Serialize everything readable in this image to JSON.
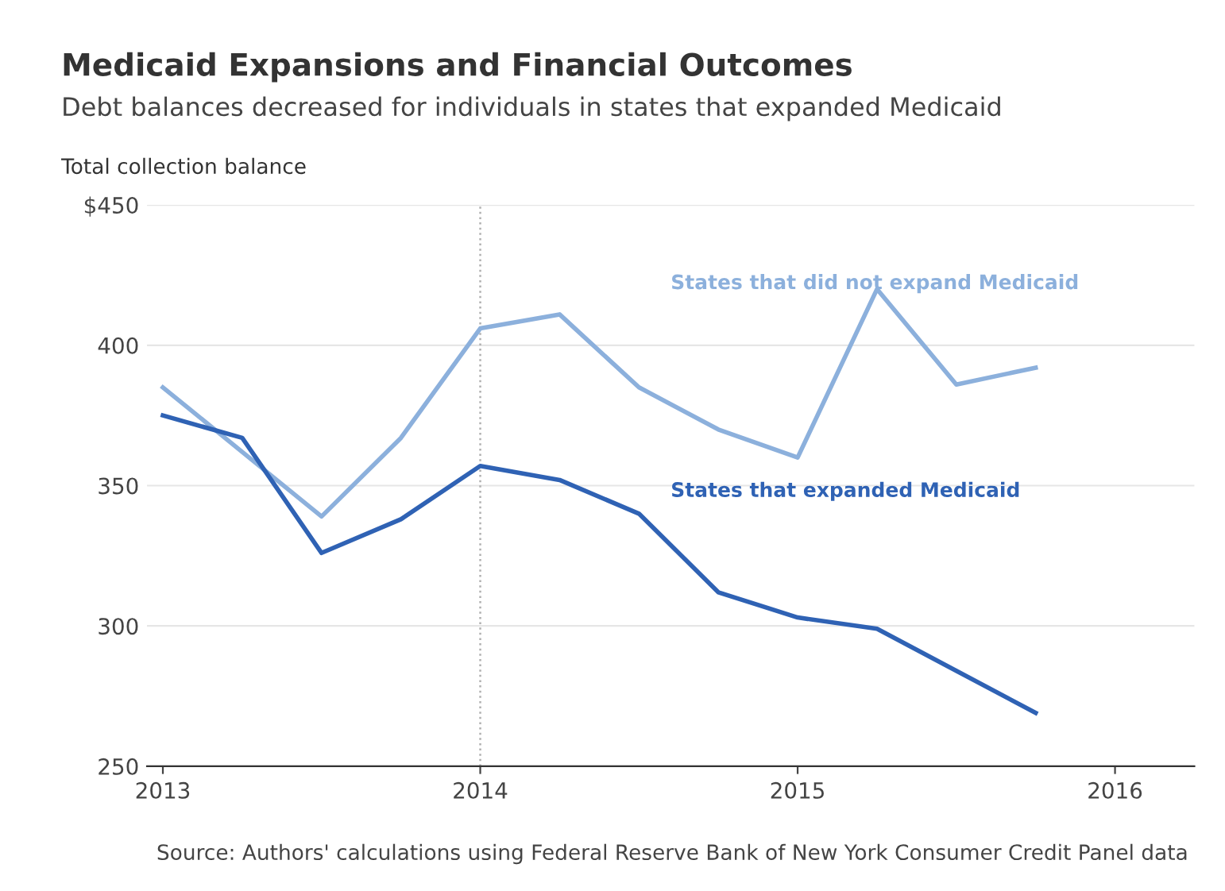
{
  "chart_data": {
    "type": "line",
    "title": "Medicaid Expansions and Financial Outcomes",
    "subtitle": "Debt balances decreased for individuals in states that expanded Medicaid",
    "ylabel": "Total collection balance",
    "x": [
      2013,
      2013.25,
      2013.5,
      2013.75,
      2014,
      2014.25,
      2014.5,
      2014.75,
      2015,
      2015.25,
      2015.5,
      2015.75
    ],
    "series": [
      {
        "name": "States that did not expand Medicaid",
        "color": "#8cb0dc",
        "values": [
          385,
          362,
          339,
          367,
          406,
          411,
          385,
          370,
          360,
          420,
          386,
          392
        ]
      },
      {
        "name": "States that expanded Medicaid",
        "color": "#2f62b4",
        "values": [
          375,
          367,
          326,
          338,
          357,
          352,
          340,
          312,
          303,
          299,
          284,
          269
        ]
      }
    ],
    "xlim": [
      2012.95,
      2016.25
    ],
    "xticks": [
      2013,
      2014,
      2015,
      2016
    ],
    "ylim": [
      250,
      450
    ],
    "yticks": [
      250,
      300,
      350,
      400,
      {
        "value": 450,
        "label": "$450"
      }
    ],
    "ref_lines": [
      {
        "axis": "x",
        "value": 2014,
        "color": "#b0b0b0",
        "line_style": "dotted"
      }
    ],
    "grid": "y",
    "legend": false,
    "marker": "none",
    "line_style": "solid",
    "annotations": [
      "Source: Authors' calculations using Federal Reserve Bank of New York Consumer Credit Panel data"
    ]
  }
}
